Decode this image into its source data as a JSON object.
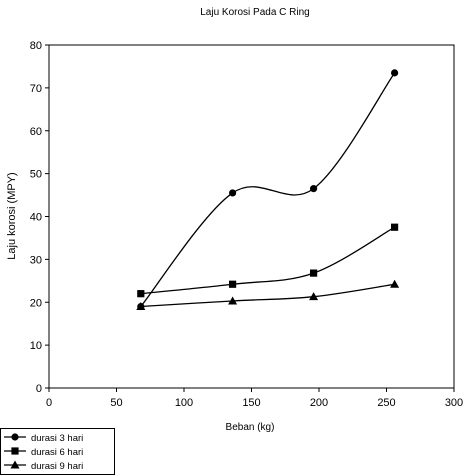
{
  "chart_data": {
    "type": "line",
    "title": "Laju Korosi Pada C Ring",
    "xlabel": "Beban (kg)",
    "ylabel": "Laju korosi (MPY)",
    "xlim": [
      0,
      300
    ],
    "ylim": [
      0,
      80
    ],
    "x_ticks": [
      0,
      50,
      100,
      150,
      200,
      250,
      300
    ],
    "y_ticks": [
      0,
      10,
      20,
      30,
      40,
      50,
      60,
      70,
      80
    ],
    "grid": false,
    "legend_position": "bottom-left",
    "series": [
      {
        "name": "durasi 3 hari",
        "marker": "circle",
        "x": [
          68,
          136,
          196,
          256
        ],
        "y": [
          19.0,
          45.5,
          46.5,
          73.5
        ]
      },
      {
        "name": "durasi 6 hari",
        "marker": "square",
        "x": [
          68,
          136,
          196,
          256
        ],
        "y": [
          22.0,
          24.2,
          26.8,
          37.5
        ]
      },
      {
        "name": "durasi 9 hari",
        "marker": "triangle",
        "x": [
          68,
          136,
          196,
          256
        ],
        "y": [
          19.0,
          20.3,
          21.3,
          24.2
        ]
      }
    ],
    "colors": {
      "line": "#000000",
      "frame": "#000000"
    }
  }
}
